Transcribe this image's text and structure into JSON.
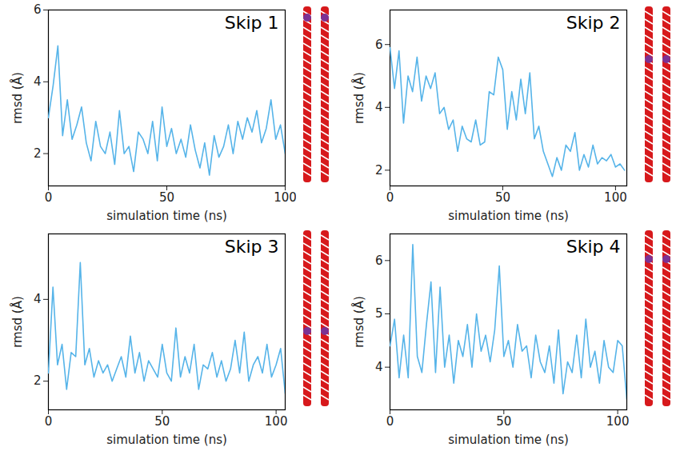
{
  "chart_data": [
    {
      "type": "line",
      "title": "Skip 1",
      "x_label": "simulation time (ns)",
      "y_label": "rmsd (Å)",
      "color": "#56b4e9",
      "xlim": [
        0,
        100
      ],
      "xticks": [
        0,
        50,
        100
      ],
      "ylim": [
        1.1,
        6
      ],
      "yticks": [
        2,
        4,
        6
      ],
      "x": [
        0,
        2,
        4,
        6,
        8,
        10,
        12,
        14,
        16,
        18,
        20,
        22,
        24,
        26,
        28,
        30,
        32,
        34,
        36,
        38,
        40,
        42,
        44,
        46,
        48,
        50,
        52,
        54,
        56,
        58,
        60,
        62,
        64,
        66,
        68,
        70,
        72,
        74,
        76,
        78,
        80,
        82,
        84,
        86,
        88,
        90,
        92,
        94,
        96,
        98,
        100
      ],
      "values": [
        3.0,
        3.9,
        5.0,
        2.5,
        3.5,
        2.4,
        2.8,
        3.3,
        2.3,
        1.8,
        2.9,
        2.2,
        2.0,
        2.6,
        1.7,
        3.2,
        2.0,
        2.2,
        1.5,
        2.6,
        2.4,
        2.0,
        2.9,
        1.8,
        3.3,
        2.2,
        2.7,
        2.0,
        2.4,
        1.9,
        2.8,
        2.1,
        1.6,
        2.3,
        1.4,
        2.5,
        1.9,
        2.2,
        2.8,
        2.0,
        2.9,
        2.4,
        3.0,
        2.6,
        3.2,
        2.3,
        2.7,
        3.5,
        2.4,
        2.8,
        2.0
      ]
    },
    {
      "type": "line",
      "title": "Skip 2",
      "x_label": "simulation time (ns)",
      "y_label": "rmsd (Å)",
      "color": "#56b4e9",
      "xlim": [
        0,
        105
      ],
      "xticks": [
        0,
        50,
        100
      ],
      "ylim": [
        1.5,
        7.1
      ],
      "yticks": [
        2,
        4,
        6
      ],
      "x": [
        0,
        2,
        4,
        6,
        8,
        10,
        12,
        14,
        16,
        18,
        20,
        22,
        24,
        26,
        28,
        30,
        32,
        34,
        36,
        38,
        40,
        42,
        44,
        46,
        48,
        50,
        52,
        54,
        56,
        58,
        60,
        62,
        64,
        66,
        68,
        70,
        72,
        74,
        76,
        78,
        80,
        82,
        84,
        86,
        88,
        90,
        92,
        94,
        96,
        98,
        100,
        102,
        104
      ],
      "values": [
        5.9,
        4.6,
        5.8,
        3.5,
        5.0,
        4.5,
        5.6,
        4.2,
        5.0,
        4.6,
        5.1,
        3.8,
        4.0,
        3.3,
        3.6,
        2.6,
        3.4,
        3.0,
        2.9,
        3.6,
        2.8,
        2.9,
        4.5,
        4.4,
        5.6,
        5.2,
        3.3,
        4.5,
        3.6,
        4.9,
        3.8,
        5.1,
        3.0,
        3.4,
        2.6,
        2.2,
        1.8,
        2.4,
        2.0,
        2.8,
        2.6,
        3.2,
        2.0,
        2.5,
        2.1,
        2.8,
        2.2,
        2.4,
        2.3,
        2.5,
        2.1,
        2.2,
        2.0
      ]
    },
    {
      "type": "line",
      "title": "Skip 3",
      "x_label": "simulation time (ns)",
      "y_label": "rmsd (Å)",
      "color": "#56b4e9",
      "xlim": [
        0,
        104
      ],
      "xticks": [
        0,
        50,
        100
      ],
      "ylim": [
        1.3,
        5.6
      ],
      "yticks": [
        2,
        4
      ],
      "x": [
        0,
        2,
        4,
        6,
        8,
        10,
        12,
        14,
        16,
        18,
        20,
        22,
        24,
        26,
        28,
        30,
        32,
        34,
        36,
        38,
        40,
        42,
        44,
        46,
        48,
        50,
        52,
        54,
        56,
        58,
        60,
        62,
        64,
        66,
        68,
        70,
        72,
        74,
        76,
        78,
        80,
        82,
        84,
        86,
        88,
        90,
        92,
        94,
        96,
        98,
        100,
        102,
        104
      ],
      "values": [
        2.2,
        4.3,
        2.4,
        2.9,
        1.8,
        2.7,
        2.6,
        4.9,
        2.4,
        2.8,
        2.1,
        2.5,
        2.2,
        2.4,
        2.0,
        2.3,
        2.6,
        2.1,
        3.1,
        2.2,
        2.7,
        2.0,
        2.5,
        2.3,
        2.1,
        2.9,
        2.2,
        2.0,
        3.3,
        2.1,
        2.6,
        2.2,
        2.9,
        1.8,
        2.4,
        2.3,
        2.7,
        2.1,
        2.5,
        2.0,
        2.3,
        3.0,
        2.2,
        3.2,
        2.0,
        2.4,
        2.6,
        2.2,
        2.9,
        2.1,
        2.4,
        2.8,
        1.7
      ]
    },
    {
      "type": "line",
      "title": "Skip 4",
      "x_label": "simulation time (ns)",
      "y_label": "rmsd (Å)",
      "color": "#56b4e9",
      "xlim": [
        0,
        104
      ],
      "xticks": [
        0,
        50,
        100
      ],
      "ylim": [
        3.2,
        6.5
      ],
      "yticks": [
        4,
        5,
        6
      ],
      "x": [
        0,
        2,
        4,
        6,
        8,
        10,
        12,
        14,
        16,
        18,
        20,
        22,
        24,
        26,
        28,
        30,
        32,
        34,
        36,
        38,
        40,
        42,
        44,
        46,
        48,
        50,
        52,
        54,
        56,
        58,
        60,
        62,
        64,
        66,
        68,
        70,
        72,
        74,
        76,
        78,
        80,
        82,
        84,
        86,
        88,
        90,
        92,
        94,
        96,
        98,
        100,
        102,
        104
      ],
      "values": [
        4.4,
        4.9,
        3.8,
        4.6,
        3.8,
        6.3,
        4.2,
        3.9,
        4.8,
        5.6,
        3.9,
        5.5,
        4.0,
        4.6,
        3.7,
        4.5,
        4.2,
        4.8,
        4.0,
        5.0,
        4.3,
        4.6,
        4.1,
        4.7,
        5.9,
        4.2,
        4.5,
        4.0,
        4.8,
        4.3,
        4.4,
        3.8,
        4.6,
        4.1,
        3.9,
        4.4,
        3.7,
        4.7,
        3.5,
        4.1,
        3.9,
        4.6,
        3.8,
        4.9,
        4.0,
        4.3,
        3.7,
        4.5,
        4.0,
        3.9,
        4.5,
        4.4,
        3.4
      ]
    }
  ]
}
